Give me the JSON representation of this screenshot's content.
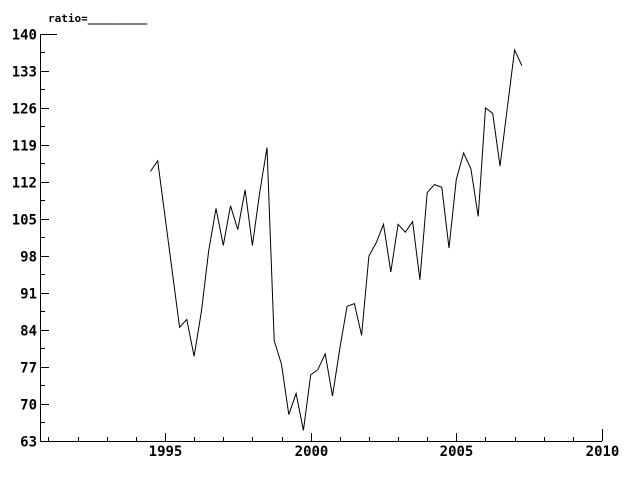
{
  "title": "ratio=_________",
  "colors": {
    "background": "#ffffff",
    "axis": "#000000",
    "text": "#000000",
    "line": "#000000"
  },
  "chart_data": {
    "type": "line",
    "title": "ratio=_________",
    "xlabel": "",
    "ylabel": "",
    "grid": false,
    "legend": "none",
    "xlim": [
      1990.7,
      2010
    ],
    "ylim": [
      63,
      140
    ],
    "x_ticks_major": [
      1995,
      2000,
      2005,
      2010
    ],
    "x_ticks_minor": [
      1991,
      1992,
      1993,
      1994,
      1996,
      1997,
      1998,
      1999,
      2001,
      2002,
      2003,
      2004,
      2006,
      2007,
      2008,
      2009
    ],
    "y_ticks_major": [
      63,
      70,
      77,
      84,
      91,
      98,
      105,
      112,
      119,
      126,
      133,
      140
    ],
    "y_ticks_minor": [
      66.5,
      73.5,
      80.5,
      87.5,
      94.5,
      101.5,
      108.5,
      115.5,
      122.5,
      129.5,
      136.5
    ],
    "series": [
      {
        "name": "ratio",
        "x": [
          1994.5,
          1994.75,
          1995.0,
          1995.25,
          1995.5,
          1995.75,
          1996.0,
          1996.25,
          1996.5,
          1996.75,
          1997.0,
          1997.25,
          1997.5,
          1997.75,
          1998.0,
          1998.25,
          1998.5,
          1998.75,
          1999.0,
          1999.25,
          1999.5,
          1999.75,
          2000.0,
          2000.25,
          2000.5,
          2000.75,
          2001.0,
          2001.25,
          2001.5,
          2001.75,
          2002.0,
          2002.25,
          2002.5,
          2002.75,
          2003.0,
          2003.25,
          2003.5,
          2003.75,
          2004.0,
          2004.25,
          2004.5,
          2004.75,
          2005.0,
          2005.25,
          2005.5,
          2005.75,
          2006.0,
          2006.25,
          2006.5,
          2006.75,
          2007.0,
          2007.25
        ],
        "values": [
          114,
          116,
          105.5,
          95,
          84.5,
          86,
          79,
          87.5,
          99,
          107,
          100,
          107.5,
          103,
          110.5,
          100,
          110,
          118.5,
          82,
          77.5,
          68,
          72,
          65,
          75.5,
          76.5,
          79.5,
          71.5,
          80.5,
          88.5,
          89,
          83,
          98,
          100.5,
          104,
          95,
          104,
          102.5,
          104.5,
          93.5,
          110,
          111.5,
          111,
          99.5,
          112.5,
          117.5,
          114.5,
          105.5,
          126,
          125,
          115,
          126,
          137,
          134
        ]
      }
    ]
  }
}
